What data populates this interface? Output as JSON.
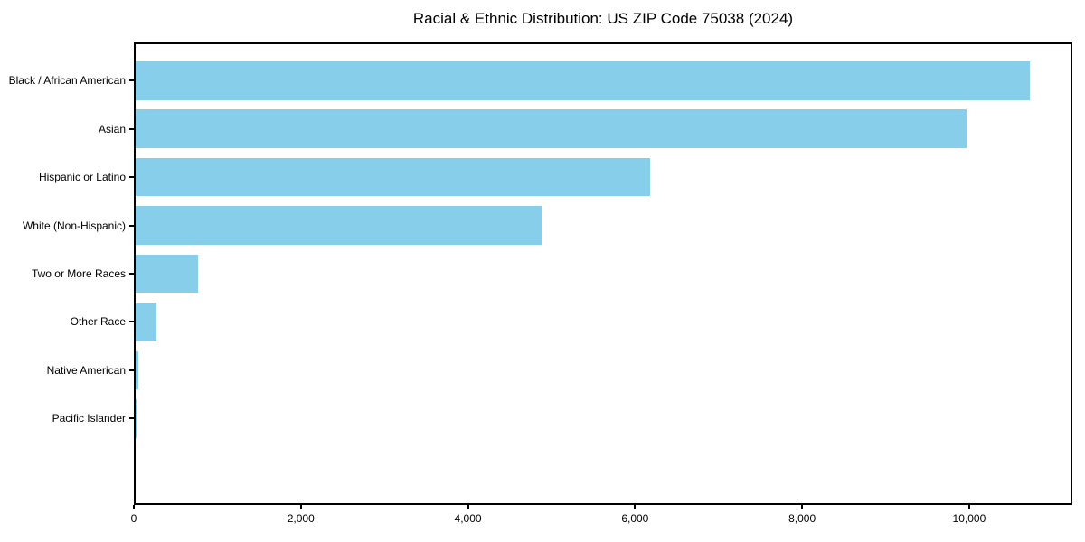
{
  "page": {
    "background": "#ffffff"
  },
  "chart_data": {
    "type": "bar",
    "orientation": "horizontal",
    "title": "Racial & Ethnic Distribution: US ZIP Code 75038 (2024)",
    "categories": [
      "Black / African American",
      "Asian",
      "Hispanic or Latino",
      "White (Non-Hispanic)",
      "Two or More Races",
      "Other Race",
      "Native American",
      "Pacific Islander"
    ],
    "values": [
      10700,
      9950,
      6160,
      4870,
      750,
      250,
      35,
      10
    ],
    "xlabel": "",
    "ylabel": "",
    "xlim": [
      0,
      11235
    ],
    "xticks": [
      0,
      2000,
      4000,
      6000,
      8000,
      10000
    ],
    "xtick_labels": [
      "0",
      "2,000",
      "4,000",
      "6,000",
      "8,000",
      "10,000"
    ],
    "bar_color": "#87CEEB",
    "axis_color": "#000000",
    "text_color": "#000000",
    "grid": false,
    "legend": null
  }
}
